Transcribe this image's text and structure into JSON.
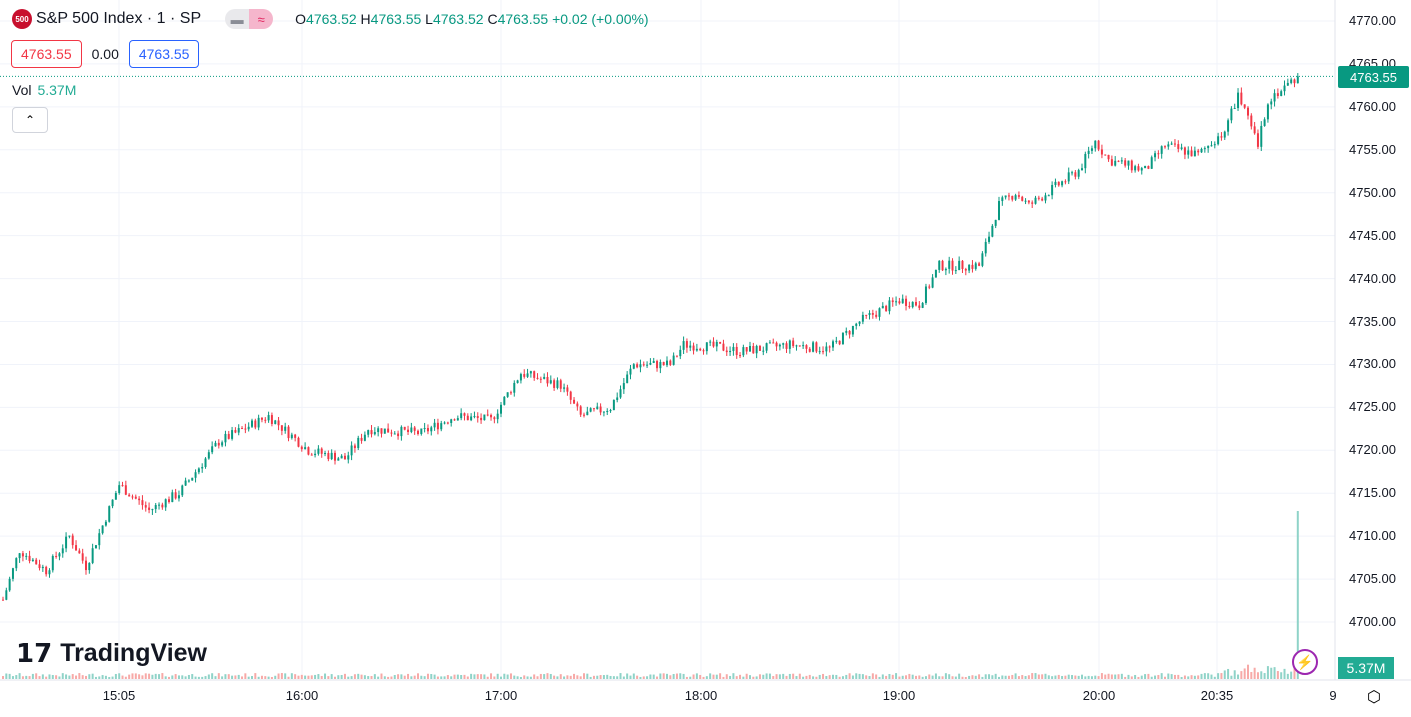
{
  "header": {
    "logo_text": "500",
    "title": "S&P 500 Index · 1 · SP",
    "open_label": "O",
    "open": "4763.52",
    "high_label": "H",
    "high": "4763.55",
    "low_label": "L",
    "low": "4763.52",
    "close_label": "C",
    "close": "4763.55",
    "change": "+0.02 (+0.00%)"
  },
  "quote": {
    "bid": "4763.55",
    "spread": "0.00",
    "ask": "4763.55"
  },
  "volume": {
    "label": "Vol",
    "value": "5.37M"
  },
  "branding": "TradingView",
  "colors": {
    "up": "#089981",
    "down": "#f23645",
    "vol_up": "#8fd3c8",
    "vol_down": "#f7a9a7"
  },
  "chart_data": {
    "type": "candlestick",
    "ylim": [
      4697,
      4771
    ],
    "y_ticks": [
      "4770.00",
      "4765.00",
      "4760.00",
      "4755.00",
      "4750.00",
      "4745.00",
      "4740.00",
      "4735.00",
      "4730.00",
      "4725.00",
      "4720.00",
      "4715.00",
      "4710.00",
      "4705.00",
      "4700.00"
    ],
    "x_ticks": [
      "15:05",
      "16:00",
      "17:00",
      "18:00",
      "19:00",
      "20:00",
      "20:35",
      "9"
    ],
    "last_price": "4763.55",
    "last_volume": "5.37M",
    "close_path": [
      [
        "14:30",
        4702.6
      ],
      [
        "14:35",
        4708.4
      ],
      [
        "14:43",
        4706
      ],
      [
        "14:50",
        4710
      ],
      [
        "14:55",
        4706.5
      ],
      [
        "15:05",
        4716
      ],
      [
        "15:14",
        4713
      ],
      [
        "15:23",
        4715
      ],
      [
        "15:35",
        4721
      ],
      [
        "15:50",
        4724
      ],
      [
        "16:02",
        4720
      ],
      [
        "16:13",
        4719
      ],
      [
        "16:20",
        4722.5
      ],
      [
        "16:36",
        4722
      ],
      [
        "16:46",
        4724
      ],
      [
        "16:57",
        4723.5
      ],
      [
        "17:06",
        4729
      ],
      [
        "17:18",
        4727.6
      ],
      [
        "17:24",
        4724
      ],
      [
        "17:33",
        4725
      ],
      [
        "17:40",
        4730
      ],
      [
        "17:51",
        4730
      ],
      [
        "17:55",
        4732.3
      ],
      [
        "18:06",
        4732
      ],
      [
        "18:12",
        4731.5
      ],
      [
        "18:27",
        4732.3
      ],
      [
        "18:39",
        4731.8
      ],
      [
        "18:48",
        4735
      ],
      [
        "19:00",
        4737.5
      ],
      [
        "19:06",
        4737
      ],
      [
        "19:12",
        4741.5
      ],
      [
        "19:24",
        4741.5
      ],
      [
        "19:30",
        4748.6
      ],
      [
        "19:35",
        4750
      ],
      [
        "19:39",
        4748.5
      ],
      [
        "19:54",
        4752.6
      ],
      [
        "19:59",
        4756
      ],
      [
        "20:03",
        4753.8
      ],
      [
        "20:14",
        4752.6
      ],
      [
        "20:20",
        4755.5
      ],
      [
        "20:30",
        4754.4
      ],
      [
        "20:38",
        4757.3
      ],
      [
        "20:42",
        4761.4
      ],
      [
        "20:48",
        4755.5
      ],
      [
        "20:51",
        4760.8
      ],
      [
        "21:00",
        4763.55
      ]
    ]
  }
}
